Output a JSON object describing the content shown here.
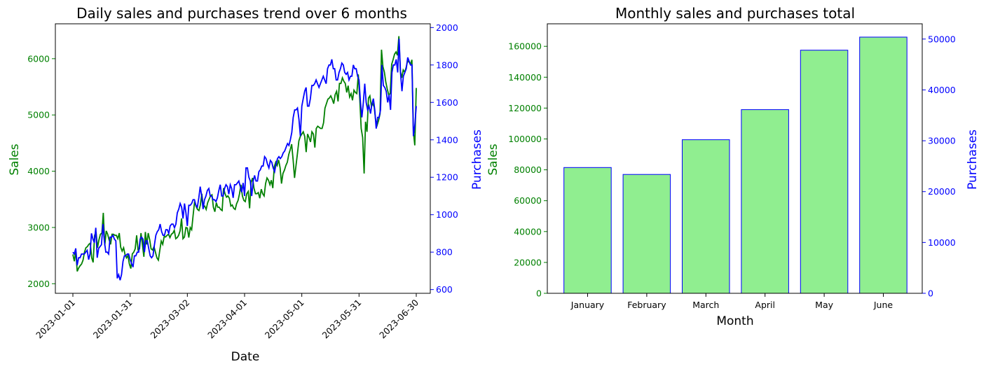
{
  "chart_data": [
    {
      "type": "line",
      "title": "Daily sales and purchases trend over 6 months",
      "xlabel": "Date",
      "ylabel": "Sales",
      "ylabel_right": "Purchases",
      "x_ticks": [
        "2023-01-01",
        "2023-01-31",
        "2023-03-02",
        "2023-04-01",
        "2023-05-01",
        "2023-05-31",
        "2023-06-30"
      ],
      "y_ticks": [
        2000,
        3000,
        4000,
        5000,
        6000
      ],
      "y_ticks_right": [
        600,
        800,
        1000,
        1200,
        1400,
        1600,
        1800,
        2000
      ],
      "ylim": [
        1830,
        6620
      ],
      "ylim_right": [
        580,
        2020
      ],
      "grid": false,
      "x_start": "2023-01-01",
      "x_end": "2023-06-30",
      "series": [
        {
          "name": "Sales",
          "color": "#008000",
          "values": [
            2520,
            2400,
            2580,
            2220,
            2280,
            2320,
            2350,
            2420,
            2560,
            2640,
            2660,
            2700,
            2720,
            2460,
            2380,
            2860,
            2920,
            2640,
            2780,
            2880,
            2900,
            3260,
            2680,
            2940,
            2880,
            2780,
            2700,
            2880,
            2880,
            2860,
            2860,
            2800,
            2900,
            2650,
            2580,
            2640,
            2520,
            2460,
            2500,
            2350,
            2270,
            2530,
            2560,
            2620,
            2860,
            2600,
            2620,
            2900,
            2700,
            2480,
            2920,
            2700,
            2900,
            2780,
            2620,
            2600,
            2660,
            2560,
            2460,
            2420,
            2600,
            2760,
            2700,
            2840,
            2830,
            2860,
            2880,
            2820,
            2880,
            2900,
            2950,
            2800,
            2820,
            2860,
            2940,
            3160,
            2800,
            2830,
            3000,
            2990,
            2820,
            3000,
            2960,
            3220,
            3460,
            3380,
            3320,
            3300,
            3400,
            3600,
            3360,
            3380,
            3320,
            3440,
            3500,
            3560,
            3580,
            3360,
            3280,
            3440,
            3360,
            3360,
            3320,
            3300,
            3700,
            3600,
            3540,
            3560,
            3520,
            3380,
            3400,
            3340,
            3320,
            3420,
            3480,
            3600,
            3760,
            3560,
            3480,
            3460,
            3600,
            3640,
            3340,
            3800,
            3880,
            3700,
            3600,
            3600,
            3620,
            3520,
            3680,
            3600,
            3560,
            3780,
            3880,
            3840,
            3760,
            3840,
            3700,
            4080,
            4160,
            4100,
            4200,
            4060,
            3780,
            3960,
            4020,
            4100,
            4160,
            4300,
            4380,
            4480,
            4200,
            3880,
            4100,
            4320,
            4540,
            4620,
            4660,
            4700,
            4620,
            4340,
            4660,
            4600,
            4520,
            4700,
            4660,
            4420,
            4760,
            4800,
            4780,
            4760,
            4760,
            4860,
            5120,
            5200,
            5280,
            5300,
            5340,
            5280,
            5200,
            5360,
            5420,
            5240,
            5560,
            5560,
            5660,
            5600,
            5560,
            5400,
            5520,
            5320,
            5380,
            5260,
            5440,
            5400,
            5380,
            5720,
            5280,
            4760,
            4600,
            3960,
            4880,
            4700,
            5300,
            5340,
            5160,
            5200,
            5140,
            4900,
            4820,
            4900,
            5020,
            6160,
            5860,
            5760,
            5580,
            5460,
            5360,
            5380,
            5900,
            5980,
            6080,
            6120,
            6060,
            6400,
            5780,
            5660,
            5800,
            5760,
            5840,
            5960,
            5940,
            5900,
            5980,
            4700,
            4460,
            5480
          ]
        },
        {
          "name": "Purchases",
          "color": "#0000ff",
          "values": [
            800,
            790,
            820,
            730,
            770,
            770,
            790,
            790,
            790,
            800,
            810,
            760,
            790,
            900,
            870,
            850,
            930,
            770,
            820,
            830,
            840,
            950,
            860,
            800,
            800,
            790,
            880,
            880,
            890,
            870,
            860,
            660,
            680,
            650,
            680,
            750,
            780,
            780,
            790,
            790,
            760,
            740,
            720,
            780,
            780,
            800,
            800,
            870,
            880,
            870,
            800,
            860,
            860,
            820,
            780,
            770,
            780,
            840,
            890,
            910,
            920,
            950,
            910,
            890,
            890,
            920,
            920,
            900,
            940,
            950,
            950,
            930,
            950,
            1010,
            1030,
            1060,
            1040,
            980,
            1060,
            1010,
            940,
            1050,
            1050,
            1060,
            1080,
            1080,
            1050,
            1040,
            1090,
            1150,
            1100,
            1030,
            1080,
            1100,
            1130,
            1140,
            1100,
            1100,
            1080,
            1080,
            1070,
            1090,
            1130,
            1160,
            1100,
            1100,
            1140,
            1160,
            1150,
            1110,
            1160,
            1140,
            1090,
            1160,
            1160,
            1170,
            1180,
            1150,
            1120,
            1170,
            1100,
            1250,
            1250,
            1200,
            1180,
            1100,
            1180,
            1210,
            1180,
            1180,
            1230,
            1240,
            1260,
            1260,
            1310,
            1300,
            1270,
            1250,
            1290,
            1280,
            1250,
            1230,
            1270,
            1300,
            1310,
            1300,
            1310,
            1330,
            1340,
            1360,
            1380,
            1370,
            1400,
            1440,
            1520,
            1560,
            1560,
            1570,
            1510,
            1420,
            1580,
            1620,
            1660,
            1680,
            1580,
            1580,
            1620,
            1690,
            1690,
            1700,
            1720,
            1700,
            1680,
            1700,
            1720,
            1740,
            1720,
            1700,
            1780,
            1800,
            1800,
            1830,
            1780,
            1780,
            1720,
            1720,
            1760,
            1780,
            1810,
            1800,
            1760,
            1750,
            1760,
            1720,
            1740,
            1740,
            1800,
            1780,
            1780,
            1740,
            1720,
            1600,
            1520,
            1600,
            1700,
            1600,
            1560,
            1580,
            1540,
            1590,
            1620,
            1560,
            1460,
            1520,
            1520,
            1560,
            1800,
            1690,
            1680,
            1660,
            1600,
            1640,
            1560,
            1760,
            1800,
            1800,
            1830,
            1760,
            1940,
            1760,
            1660,
            1740,
            1760,
            1780,
            1840,
            1820,
            1800,
            1800,
            1420,
            1480,
            1580
          ]
        }
      ]
    },
    {
      "type": "bar",
      "title": "Monthly sales and purchases total",
      "xlabel": "Month",
      "ylabel": "Sales",
      "ylabel_right": "Purchases",
      "categories": [
        "January",
        "February",
        "March",
        "April",
        "May",
        "June"
      ],
      "values": [
        81500,
        77000,
        99500,
        119000,
        157500,
        166000
      ],
      "y_ticks": [
        0,
        20000,
        40000,
        60000,
        80000,
        100000,
        120000,
        140000,
        160000
      ],
      "y_ticks_right": [
        0,
        10000,
        20000,
        30000,
        40000,
        50000
      ],
      "ylim": [
        0,
        174600
      ],
      "ylim_right": [
        0,
        53000
      ],
      "bar_color": "#90ee90",
      "edge_color": "#0000ff",
      "grid": false
    }
  ]
}
